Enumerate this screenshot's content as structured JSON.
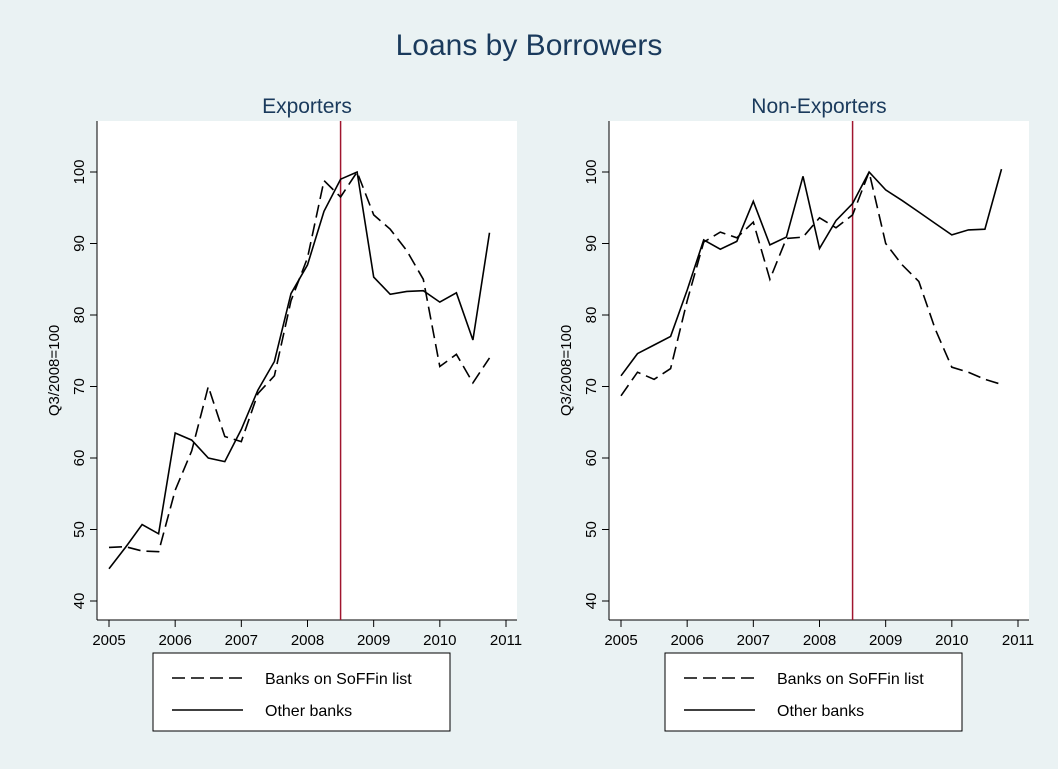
{
  "title": "Loans by Borrowers",
  "colors": {
    "background": "#eaf2f3",
    "plot_background": "#ffffff",
    "title": "#1a3a5c",
    "reference_line": "#a0152e",
    "series": "#000000"
  },
  "chart_data": [
    {
      "type": "line",
      "title": "Exporters",
      "xlabel": "",
      "ylabel": "Q3/2008=100",
      "xlim": [
        2005,
        2011
      ],
      "ylim": [
        40,
        100
      ],
      "xticks": [
        2005,
        2006,
        2007,
        2008,
        2009,
        2010,
        2011
      ],
      "yticks": [
        40,
        50,
        60,
        70,
        80,
        90,
        100
      ],
      "grid": false,
      "legend": "bottom",
      "reference_line_x": 2008.5,
      "x": [
        2005.0,
        2005.25,
        2005.5,
        2005.75,
        2006.0,
        2006.25,
        2006.5,
        2006.75,
        2007.0,
        2007.25,
        2007.5,
        2007.75,
        2008.0,
        2008.25,
        2008.5,
        2008.75,
        2009.0,
        2009.25,
        2009.5,
        2009.75,
        2010.0,
        2010.25,
        2010.5,
        2010.75
      ],
      "series": [
        {
          "name": "Banks on SoFFin list",
          "style": "dashed",
          "values": [
            47.5,
            47.6,
            47.0,
            46.9,
            55.5,
            61.0,
            70.0,
            63.0,
            62.3,
            69.0,
            71.5,
            82.0,
            88.0,
            98.8,
            96.5,
            100.0,
            94.0,
            92.0,
            89.0,
            85.0,
            72.8,
            74.5,
            70.5,
            74.0
          ]
        },
        {
          "name": "Other banks",
          "style": "solid",
          "values": [
            44.5,
            47.5,
            50.7,
            49.4,
            63.5,
            62.5,
            60.0,
            59.5,
            64.0,
            69.5,
            73.5,
            83.0,
            87.0,
            94.5,
            99.0,
            100.0,
            85.3,
            82.9,
            83.3,
            83.4,
            81.8,
            83.1,
            76.5,
            91.5
          ]
        }
      ]
    },
    {
      "type": "line",
      "title": "Non-Exporters",
      "xlabel": "",
      "ylabel": "Q3/2008=100",
      "xlim": [
        2005,
        2011
      ],
      "ylim": [
        40,
        100
      ],
      "xticks": [
        2005,
        2006,
        2007,
        2008,
        2009,
        2010,
        2011
      ],
      "yticks": [
        40,
        50,
        60,
        70,
        80,
        90,
        100
      ],
      "grid": false,
      "legend": "bottom",
      "reference_line_x": 2008.5,
      "x": [
        2005.0,
        2005.25,
        2005.5,
        2005.75,
        2006.0,
        2006.25,
        2006.5,
        2006.75,
        2007.0,
        2007.25,
        2007.5,
        2007.75,
        2008.0,
        2008.25,
        2008.5,
        2008.75,
        2009.0,
        2009.25,
        2009.5,
        2009.75,
        2010.0,
        2010.25,
        2010.5,
        2010.75
      ],
      "series": [
        {
          "name": "Banks on SoFFin list",
          "style": "dashed",
          "values": [
            68.7,
            72.0,
            71.0,
            72.5,
            82.0,
            90.2,
            91.6,
            90.8,
            93.0,
            85.0,
            90.7,
            90.9,
            93.6,
            92.2,
            94.0,
            100.0,
            90.0,
            87.0,
            84.7,
            78.0,
            72.7,
            72.0,
            71.0,
            70.3
          ]
        },
        {
          "name": "Other banks",
          "style": "solid",
          "values": [
            71.5,
            74.6,
            75.8,
            77.0,
            83.5,
            90.5,
            89.2,
            90.3,
            95.9,
            89.8,
            90.9,
            99.4,
            89.3,
            93.2,
            95.6,
            100.0,
            97.5,
            96.0,
            94.4,
            92.8,
            91.2,
            91.9,
            92.0,
            100.4
          ]
        }
      ]
    }
  ]
}
